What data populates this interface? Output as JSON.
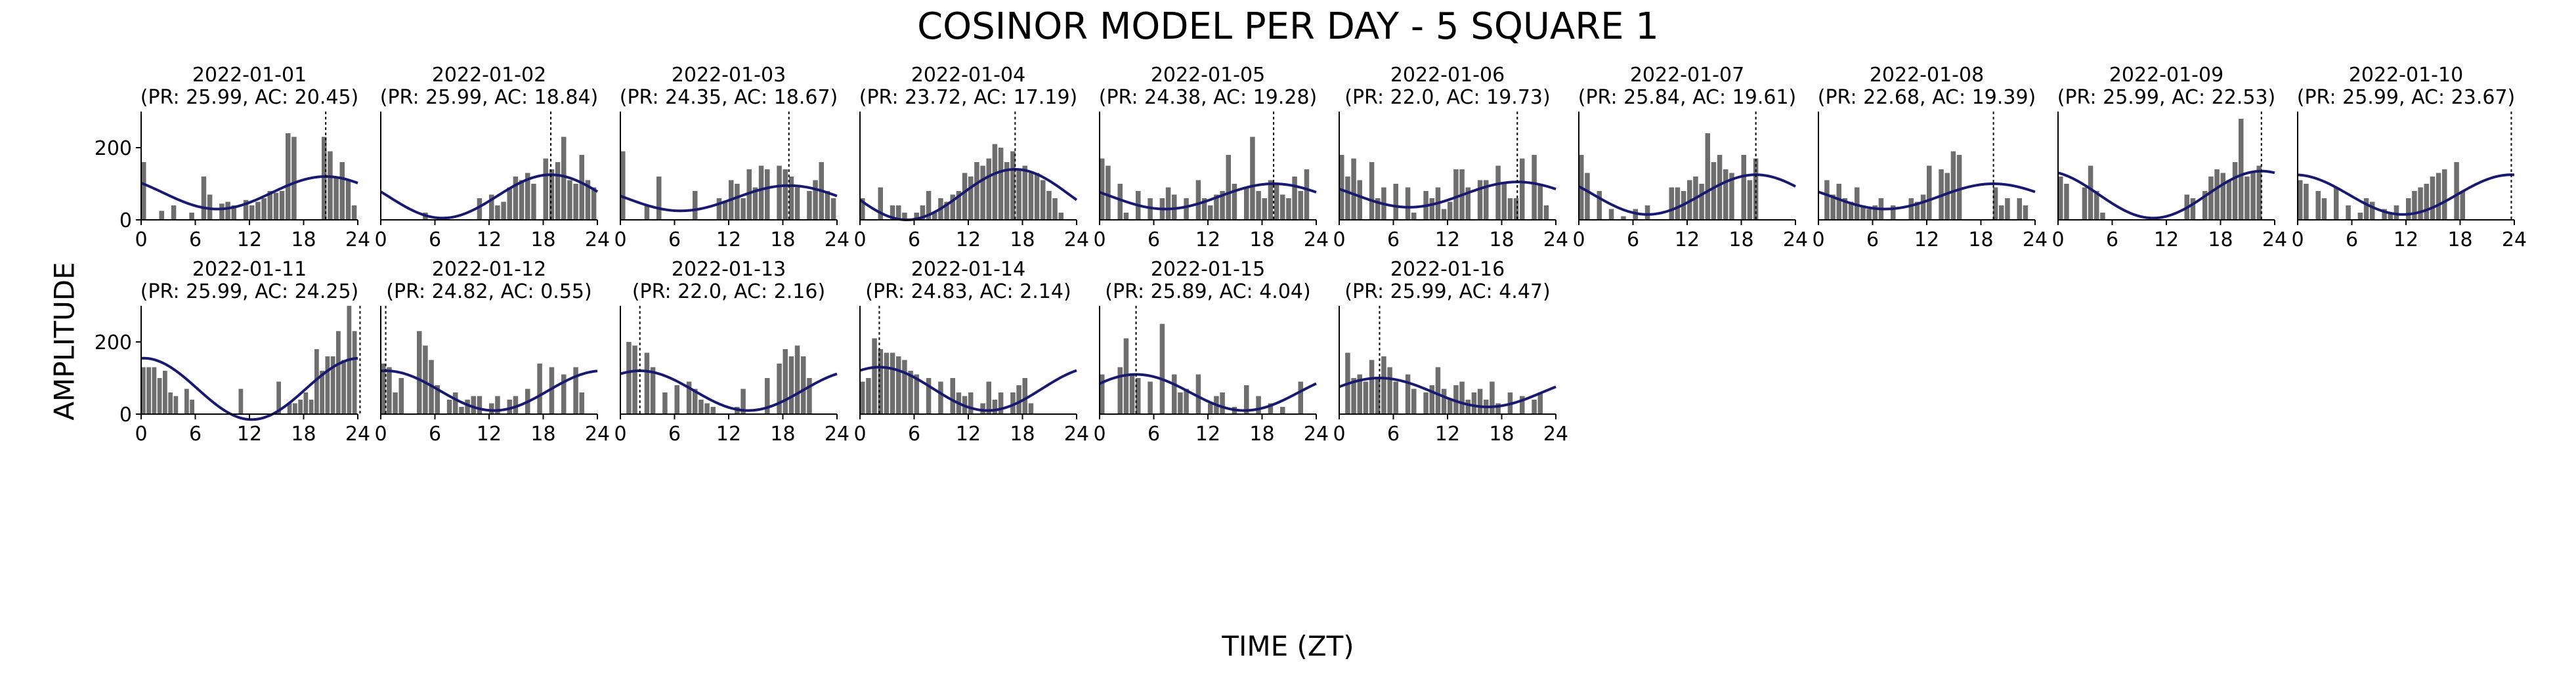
{
  "figure": {
    "title": "COSINOR MODEL PER DAY - 5 SQUARE 1",
    "xlabel": "TIME (ZT)",
    "ylabel": "AMPLITUDE"
  },
  "colors": {
    "bars": "#6e6e6e",
    "fit": "#191970",
    "peak_line": "#000000",
    "axis": "#000000"
  },
  "chart_data": [
    {
      "type": "bar",
      "date": "2022-01-01",
      "subtitle": "(PR: 25.99, AC: 20.45)",
      "peak": 20.45,
      "xlim": [
        0,
        24
      ],
      "ylim": [
        0,
        300
      ],
      "xticks": [
        0,
        6,
        12,
        18,
        24
      ],
      "yticks": [
        0,
        200
      ],
      "fit": {
        "mesor": 75,
        "amplitude": 45
      },
      "bars": [
        160,
        0,
        0,
        25,
        0,
        40,
        0,
        0,
        20,
        0,
        120,
        70,
        0,
        45,
        50,
        40,
        0,
        55,
        40,
        50,
        60,
        80,
        75,
        80,
        240,
        230,
        0,
        0,
        0,
        0,
        230,
        190,
        120,
        160,
        110,
        40
      ]
    },
    {
      "type": "bar",
      "date": "2022-01-02",
      "subtitle": "(PR: 25.99, AC: 18.84)",
      "peak": 18.84,
      "xlim": [
        0,
        24
      ],
      "ylim": [
        0,
        300
      ],
      "xticks": [
        0,
        6,
        12,
        18,
        24
      ],
      "yticks": [
        0,
        200
      ],
      "fit": {
        "mesor": 65,
        "amplitude": 60
      },
      "bars": [
        0,
        0,
        0,
        0,
        0,
        0,
        0,
        20,
        0,
        0,
        0,
        0,
        0,
        0,
        0,
        0,
        60,
        0,
        70,
        40,
        50,
        90,
        120,
        110,
        130,
        100,
        0,
        170,
        140,
        160,
        230,
        110,
        100,
        180,
        110,
        90
      ]
    },
    {
      "type": "bar",
      "date": "2022-01-03",
      "subtitle": "(PR: 24.35, AC: 18.67)",
      "peak": 18.67,
      "xlim": [
        0,
        24
      ],
      "ylim": [
        0,
        300
      ],
      "xticks": [
        0,
        6,
        12,
        18,
        24
      ],
      "yticks": [
        0,
        200
      ],
      "fit": {
        "mesor": 60,
        "amplitude": 35
      },
      "bars": [
        190,
        0,
        0,
        0,
        40,
        0,
        120,
        0,
        0,
        0,
        0,
        0,
        80,
        0,
        0,
        0,
        60,
        50,
        110,
        100,
        60,
        140,
        90,
        150,
        140,
        0,
        150,
        140,
        120,
        90,
        0,
        80,
        110,
        160,
        80,
        60
      ]
    },
    {
      "type": "bar",
      "date": "2022-01-04",
      "subtitle": "(PR: 23.72, AC: 17.19)",
      "peak": 17.19,
      "xlim": [
        0,
        24
      ],
      "ylim": [
        0,
        300
      ],
      "xticks": [
        0,
        6,
        12,
        18,
        24
      ],
      "yticks": [
        0,
        200
      ],
      "fit": {
        "mesor": 70,
        "amplitude": 70
      },
      "bars": [
        60,
        0,
        0,
        90,
        0,
        40,
        40,
        20,
        0,
        20,
        40,
        80,
        20,
        60,
        50,
        70,
        80,
        130,
        120,
        160,
        150,
        170,
        210,
        200,
        160,
        190,
        140,
        150,
        130,
        130,
        110,
        80,
        60,
        20,
        0,
        0
      ]
    },
    {
      "type": "bar",
      "date": "2022-01-05",
      "subtitle": "(PR: 24.38, AC: 19.28)",
      "peak": 19.28,
      "xlim": [
        0,
        24
      ],
      "ylim": [
        0,
        300
      ],
      "xticks": [
        0,
        6,
        12,
        18,
        24
      ],
      "yticks": [
        0,
        200
      ],
      "fit": {
        "mesor": 65,
        "amplitude": 35
      },
      "bars": [
        170,
        150,
        0,
        100,
        20,
        0,
        80,
        0,
        60,
        0,
        60,
        90,
        70,
        0,
        60,
        0,
        110,
        60,
        40,
        70,
        80,
        180,
        100,
        0,
        90,
        230,
        80,
        60,
        110,
        100,
        70,
        60,
        120,
        80,
        140,
        0
      ]
    },
    {
      "type": "bar",
      "date": "2022-01-06",
      "subtitle": "(PR: 22.0, AC: 19.73)",
      "peak": 19.73,
      "xlim": [
        0,
        24
      ],
      "ylim": [
        0,
        300
      ],
      "xticks": [
        0,
        6,
        12,
        18,
        24
      ],
      "yticks": [
        0,
        200
      ],
      "fit": {
        "mesor": 70,
        "amplitude": 35
      },
      "bars": [
        180,
        120,
        170,
        110,
        0,
        160,
        60,
        90,
        0,
        100,
        0,
        90,
        20,
        0,
        80,
        60,
        90,
        30,
        50,
        140,
        140,
        90,
        0,
        110,
        110,
        0,
        150,
        100,
        60,
        60,
        170,
        0,
        180,
        100,
        40,
        0
      ]
    },
    {
      "type": "bar",
      "date": "2022-01-07",
      "subtitle": "(PR: 25.84, AC: 19.61)",
      "peak": 19.61,
      "xlim": [
        0,
        24
      ],
      "ylim": [
        0,
        300
      ],
      "xticks": [
        0,
        6,
        12,
        18,
        24
      ],
      "yticks": [
        0,
        200
      ],
      "fit": {
        "mesor": 70,
        "amplitude": 55
      },
      "bars": [
        180,
        130,
        0,
        80,
        0,
        30,
        0,
        10,
        0,
        30,
        0,
        40,
        0,
        0,
        0,
        90,
        90,
        80,
        110,
        120,
        100,
        240,
        160,
        180,
        140,
        130,
        0,
        180,
        110,
        170,
        0,
        0,
        0,
        0,
        0,
        0
      ]
    },
    {
      "type": "bar",
      "date": "2022-01-08",
      "subtitle": "(PR: 22.68, AC: 19.39)",
      "peak": 19.39,
      "xlim": [
        0,
        24
      ],
      "ylim": [
        0,
        300
      ],
      "xticks": [
        0,
        6,
        12,
        18,
        24
      ],
      "yticks": [
        0,
        200
      ],
      "fit": {
        "mesor": 65,
        "amplitude": 35
      },
      "bars": [
        0,
        110,
        70,
        100,
        60,
        50,
        90,
        40,
        30,
        40,
        60,
        0,
        40,
        0,
        0,
        60,
        50,
        70,
        150,
        0,
        140,
        130,
        190,
        180,
        0,
        0,
        0,
        0,
        0,
        90,
        40,
        60,
        0,
        60,
        40,
        0
      ]
    },
    {
      "type": "bar",
      "date": "2022-01-09",
      "subtitle": "(PR: 25.99, AC: 22.53)",
      "peak": 22.53,
      "xlim": [
        0,
        24
      ],
      "ylim": [
        0,
        300
      ],
      "xticks": [
        0,
        6,
        12,
        18,
        24
      ],
      "yticks": [
        0,
        200
      ],
      "fit": {
        "mesor": 70,
        "amplitude": 65
      },
      "bars": [
        120,
        100,
        0,
        0,
        90,
        150,
        80,
        20,
        0,
        0,
        0,
        0,
        0,
        0,
        0,
        0,
        0,
        0,
        0,
        0,
        0,
        70,
        60,
        0,
        80,
        120,
        140,
        130,
        110,
        160,
        280,
        120,
        130,
        150,
        0,
        0
      ]
    },
    {
      "type": "bar",
      "date": "2022-01-10",
      "subtitle": "(PR: 25.99, AC: 23.67)",
      "peak": 23.67,
      "xlim": [
        0,
        24
      ],
      "ylim": [
        0,
        300
      ],
      "xticks": [
        0,
        6,
        12,
        18,
        24
      ],
      "yticks": [
        0,
        200
      ],
      "fit": {
        "mesor": 70,
        "amplitude": 55
      },
      "bars": [
        110,
        100,
        0,
        80,
        60,
        0,
        90,
        0,
        40,
        0,
        20,
        60,
        50,
        0,
        30,
        20,
        40,
        0,
        60,
        80,
        90,
        100,
        120,
        130,
        140,
        0,
        160,
        80,
        0,
        0,
        0,
        0,
        0,
        0,
        0,
        0
      ]
    },
    {
      "type": "bar",
      "date": "2022-01-11",
      "subtitle": "(PR: 25.99, AC: 24.25)",
      "peak": 24.25,
      "xlim": [
        0,
        24
      ],
      "ylim": [
        0,
        300
      ],
      "xticks": [
        0,
        6,
        12,
        18,
        24
      ],
      "yticks": [
        0,
        200
      ],
      "fit": {
        "mesor": 70,
        "amplitude": 85
      },
      "bars": [
        130,
        130,
        130,
        100,
        120,
        60,
        50,
        0,
        70,
        40,
        0,
        0,
        0,
        0,
        0,
        0,
        0,
        0,
        70,
        0,
        0,
        0,
        0,
        0,
        0,
        90,
        0,
        30,
        30,
        40,
        60,
        40,
        180,
        120,
        160,
        160,
        230,
        150,
        300,
        230
      ]
    },
    {
      "type": "bar",
      "date": "2022-01-12",
      "subtitle": "(PR: 24.82, AC: 0.55)",
      "peak": 0.55,
      "xlim": [
        0,
        24
      ],
      "ylim": [
        0,
        300
      ],
      "xticks": [
        0,
        6,
        12,
        18,
        24
      ],
      "yticks": [
        0,
        200
      ],
      "fit": {
        "mesor": 65,
        "amplitude": 55
      },
      "bars": [
        140,
        130,
        60,
        100,
        0,
        0,
        230,
        190,
        150,
        80,
        0,
        40,
        60,
        20,
        40,
        50,
        50,
        0,
        30,
        50,
        0,
        40,
        50,
        0,
        70,
        0,
        140,
        0,
        130,
        0,
        110,
        0,
        130,
        60,
        0,
        0
      ]
    },
    {
      "type": "bar",
      "date": "2022-01-13",
      "subtitle": "(PR: 22.0, AC: 2.16)",
      "peak": 2.16,
      "xlim": [
        0,
        24
      ],
      "ylim": [
        0,
        300
      ],
      "xticks": [
        0,
        6,
        12,
        18,
        24
      ],
      "yticks": [
        0,
        200
      ],
      "fit": {
        "mesor": 65,
        "amplitude": 55
      },
      "bars": [
        0,
        200,
        190,
        0,
        170,
        130,
        0,
        60,
        0,
        80,
        0,
        90,
        70,
        40,
        30,
        20,
        0,
        0,
        0,
        20,
        70,
        0,
        0,
        0,
        100,
        0,
        140,
        180,
        160,
        190,
        160,
        100,
        0,
        0,
        0,
        0
      ]
    },
    {
      "type": "bar",
      "date": "2022-01-14",
      "subtitle": "(PR: 24.83, AC: 2.14)",
      "peak": 2.14,
      "xlim": [
        0,
        24
      ],
      "ylim": [
        0,
        300
      ],
      "xticks": [
        0,
        6,
        12,
        18,
        24
      ],
      "yticks": [
        0,
        200
      ],
      "fit": {
        "mesor": 70,
        "amplitude": 60
      },
      "bars": [
        90,
        100,
        210,
        180,
        170,
        170,
        160,
        150,
        120,
        110,
        0,
        100,
        0,
        90,
        0,
        100,
        60,
        50,
        60,
        0,
        30,
        90,
        40,
        60,
        0,
        60,
        80,
        100,
        30,
        0,
        0,
        0,
        0,
        0,
        0,
        0
      ]
    },
    {
      "type": "bar",
      "date": "2022-01-15",
      "subtitle": "(PR: 25.89, AC: 4.04)",
      "peak": 4.04,
      "xlim": [
        0,
        24
      ],
      "ylim": [
        0,
        300
      ],
      "xticks": [
        0,
        6,
        12,
        18,
        24
      ],
      "yticks": [
        0,
        200
      ],
      "fit": {
        "mesor": 60,
        "amplitude": 50
      },
      "bars": [
        110,
        0,
        0,
        130,
        210,
        110,
        100,
        0,
        90,
        0,
        250,
        0,
        110,
        60,
        70,
        0,
        110,
        0,
        30,
        50,
        60,
        0,
        20,
        0,
        80,
        0,
        50,
        0,
        30,
        0,
        20,
        0,
        0,
        90,
        0,
        0
      ]
    },
    {
      "type": "bar",
      "date": "2022-01-16",
      "subtitle": "(PR: 25.99, AC: 4.47)",
      "peak": 4.47,
      "xlim": [
        0,
        24
      ],
      "ylim": [
        0,
        300
      ],
      "xticks": [
        0,
        6,
        12,
        18,
        24
      ],
      "yticks": [
        0,
        200
      ],
      "fit": {
        "mesor": 60,
        "amplitude": 40
      },
      "bars": [
        0,
        170,
        100,
        110,
        90,
        150,
        100,
        160,
        130,
        90,
        0,
        110,
        70,
        0,
        60,
        80,
        130,
        70,
        40,
        80,
        90,
        40,
        60,
        70,
        40,
        90,
        30,
        0,
        60,
        0,
        50,
        0,
        40,
        60,
        0,
        0
      ]
    }
  ]
}
